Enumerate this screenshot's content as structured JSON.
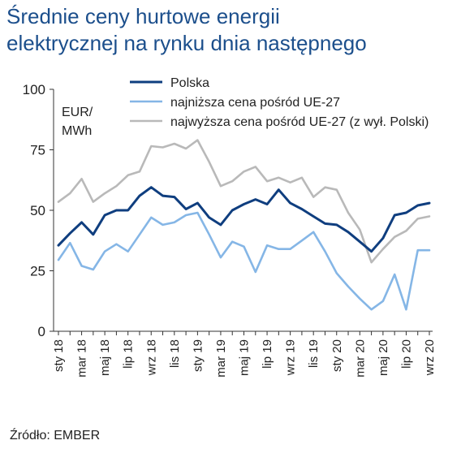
{
  "title_line1": "Średnie ceny hurtowe energii",
  "title_line2": "elektrycznej na rynku dnia następnego",
  "source": "Źródło: EMBER",
  "unit_line1": "EUR/",
  "unit_line2": "MWh",
  "colors": {
    "title": "#1c4f8c",
    "Polska": "#0f3e7f",
    "min": "#85b6e6",
    "max": "#b9b9b9",
    "axis": "#333333"
  },
  "chart_data": {
    "type": "line",
    "x": [
      "sty 18",
      "lut 18",
      "mar 18",
      "kwi 18",
      "maj 18",
      "cze 18",
      "lip 18",
      "sie 18",
      "wrz 18",
      "paź 18",
      "lis 18",
      "gru 18",
      "sty 19",
      "lut 19",
      "mar 19",
      "kwi 19",
      "maj 19",
      "cze 19",
      "lip 19",
      "sie 19",
      "wrz 19",
      "paź 19",
      "lis 19",
      "gru 19",
      "sty 20",
      "lut 20",
      "mar 20",
      "kwi 20",
      "maj 20",
      "cze 20",
      "lip 20",
      "sie 20",
      "wrz 20"
    ],
    "x_tick_labels": [
      "sty 18",
      "mar 18",
      "maj 18",
      "lip 18",
      "wrz 18",
      "lis 18",
      "sty 19",
      "mar 19",
      "maj 19",
      "lip 19",
      "wrz 19",
      "lis 19",
      "sty 20",
      "mar 20",
      "maj 20",
      "lip 20",
      "wrz 20"
    ],
    "ylim": [
      0,
      100
    ],
    "yticks": [
      0,
      25,
      50,
      75,
      100
    ],
    "legend_position": "top",
    "series": [
      {
        "name": "Polska",
        "color": "#0f3e7f",
        "values": [
          35.5,
          40.5,
          45,
          40,
          48,
          50,
          50,
          56,
          59.5,
          56,
          55.5,
          50.5,
          53,
          47,
          44,
          50,
          52.5,
          54.5,
          52.5,
          58.5,
          53,
          50.5,
          47.5,
          44.5,
          44,
          41,
          37,
          33,
          38.5,
          48,
          49,
          52,
          53
        ]
      },
      {
        "name": "najniższa cena pośród UE-27",
        "color": "#85b6e6",
        "values": [
          29.5,
          36.5,
          27,
          25.5,
          33,
          36,
          33,
          40,
          47,
          44,
          45,
          48,
          49,
          40,
          30.5,
          37,
          35,
          24.5,
          35.5,
          34,
          34,
          37.5,
          41,
          33,
          24,
          18.5,
          13.5,
          9,
          12.5,
          23.5,
          9,
          33.5,
          33.5
        ]
      },
      {
        "name": "najwyższa cena pośród UE-27 (z wył. Polski)",
        "color": "#b9b9b9",
        "values": [
          53.5,
          57,
          63,
          53.5,
          57,
          60,
          64.5,
          66,
          76.5,
          76,
          77.5,
          75.5,
          79,
          70,
          60,
          62,
          66,
          68,
          62,
          63.5,
          61.5,
          63.5,
          55.5,
          59.5,
          58.5,
          49,
          42,
          28.5,
          34,
          39,
          41.5,
          46.5,
          47.5
        ]
      }
    ]
  }
}
